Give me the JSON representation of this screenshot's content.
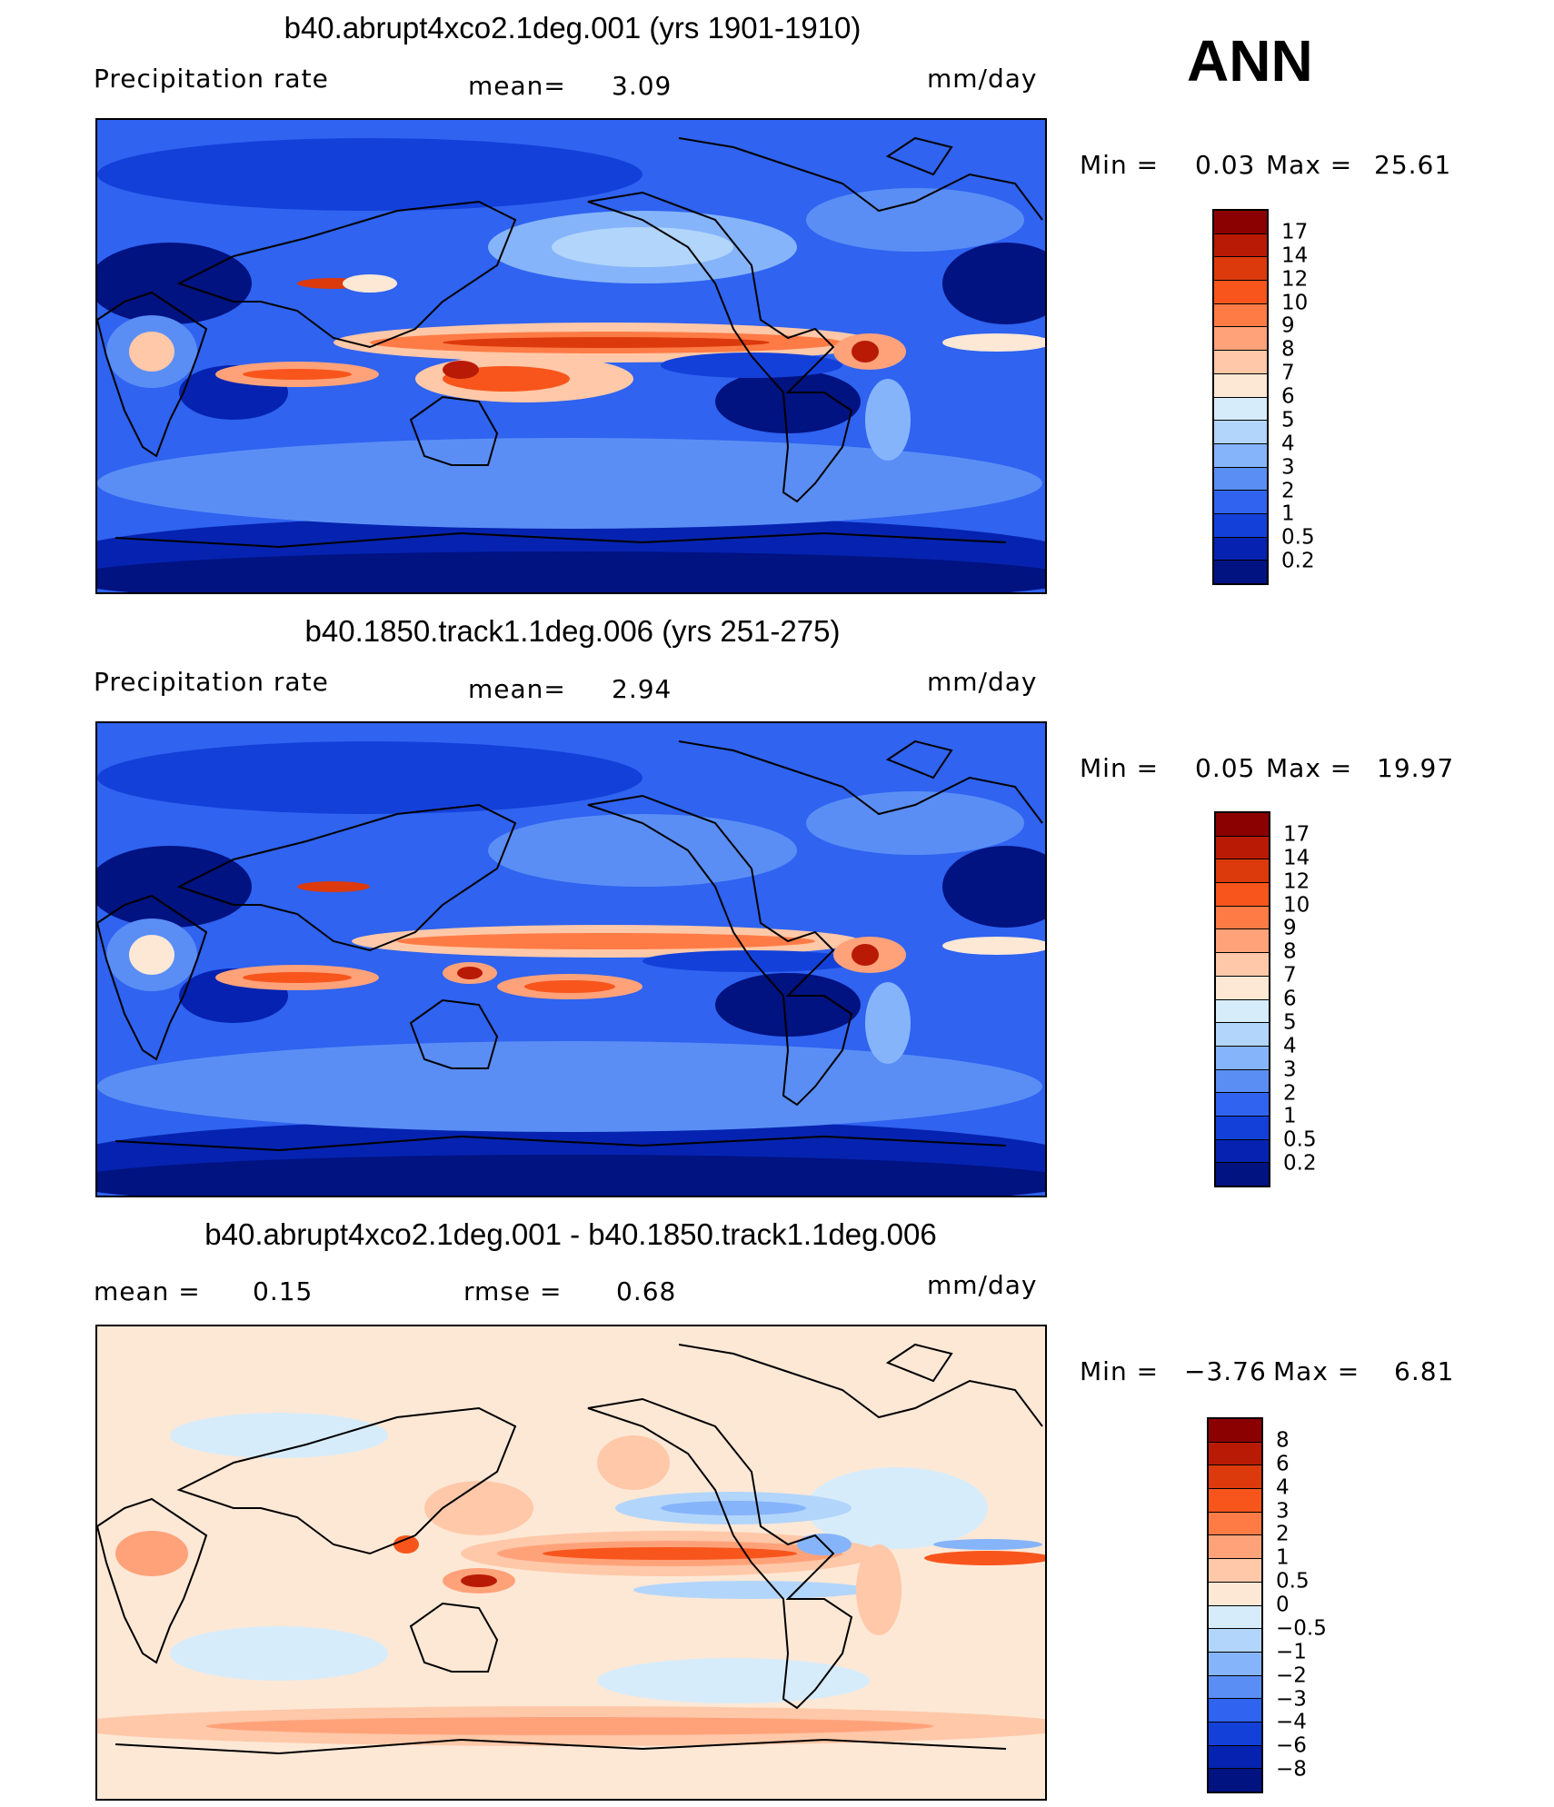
{
  "season": "ANN",
  "units": "mm/day",
  "panels": [
    {
      "title": "b40.abrupt4xco2.1deg.001 (yrs 1901-1910)",
      "left_label": "Precipitation  rate",
      "mean_label": "mean=",
      "mean_value": "3.09",
      "min_label": "Min  =",
      "min_value": "0.03",
      "max_label": "Max  =",
      "max_value": "25.61",
      "colorbar": {
        "levels": [
          "17",
          "14",
          "12",
          "10",
          "9",
          "8",
          "7",
          "6",
          "5",
          "4",
          "3",
          "2",
          "1",
          "0.5",
          "0.2"
        ],
        "colors": [
          "#8b0000",
          "#b81a05",
          "#dc3a0c",
          "#f8551c",
          "#ff7b46",
          "#ffa27a",
          "#ffc8a8",
          "#fde8d6",
          "#d7ecfa",
          "#b2d5fb",
          "#86b4fb",
          "#5a8ef5",
          "#2f63f0",
          "#1440da",
          "#0523b0",
          "#011281"
        ]
      }
    },
    {
      "title": "b40.1850.track1.1deg.006 (yrs 251-275)",
      "left_label": "Precipitation  rate",
      "mean_label": "mean=",
      "mean_value": "2.94",
      "min_label": "Min  =",
      "min_value": "0.05",
      "max_label": "Max  =",
      "max_value": "19.97",
      "colorbar": {
        "levels": [
          "17",
          "14",
          "12",
          "10",
          "9",
          "8",
          "7",
          "6",
          "5",
          "4",
          "3",
          "2",
          "1",
          "0.5",
          "0.2"
        ],
        "colors": [
          "#8b0000",
          "#b81a05",
          "#dc3a0c",
          "#f8551c",
          "#ff7b46",
          "#ffa27a",
          "#ffc8a8",
          "#fde8d6",
          "#d7ecfa",
          "#b2d5fb",
          "#86b4fb",
          "#5a8ef5",
          "#2f63f0",
          "#1440da",
          "#0523b0",
          "#011281"
        ]
      }
    },
    {
      "title": "b40.abrupt4xco2.1deg.001 - b40.1850.track1.1deg.006",
      "left_label": "mean  =",
      "left_value": "0.15",
      "mean_label": "rmse  =",
      "mean_value": "0.68",
      "min_label": "Min  =",
      "min_value": "−3.76",
      "max_label": "Max  =",
      "max_value": "6.81",
      "colorbar": {
        "levels": [
          "8",
          "6",
          "4",
          "3",
          "2",
          "1",
          "0.5",
          "0",
          "−0.5",
          "−1",
          "−2",
          "−3",
          "−4",
          "−6",
          "−8"
        ],
        "colors": [
          "#8b0000",
          "#b81a05",
          "#dc3a0c",
          "#f8551c",
          "#ff7b46",
          "#ffa27a",
          "#ffc8a8",
          "#fde8d6",
          "#d7ecfa",
          "#b2d5fb",
          "#86b4fb",
          "#5a8ef5",
          "#2f63f0",
          "#1440da",
          "#0523b0",
          "#011281"
        ]
      }
    }
  ]
}
